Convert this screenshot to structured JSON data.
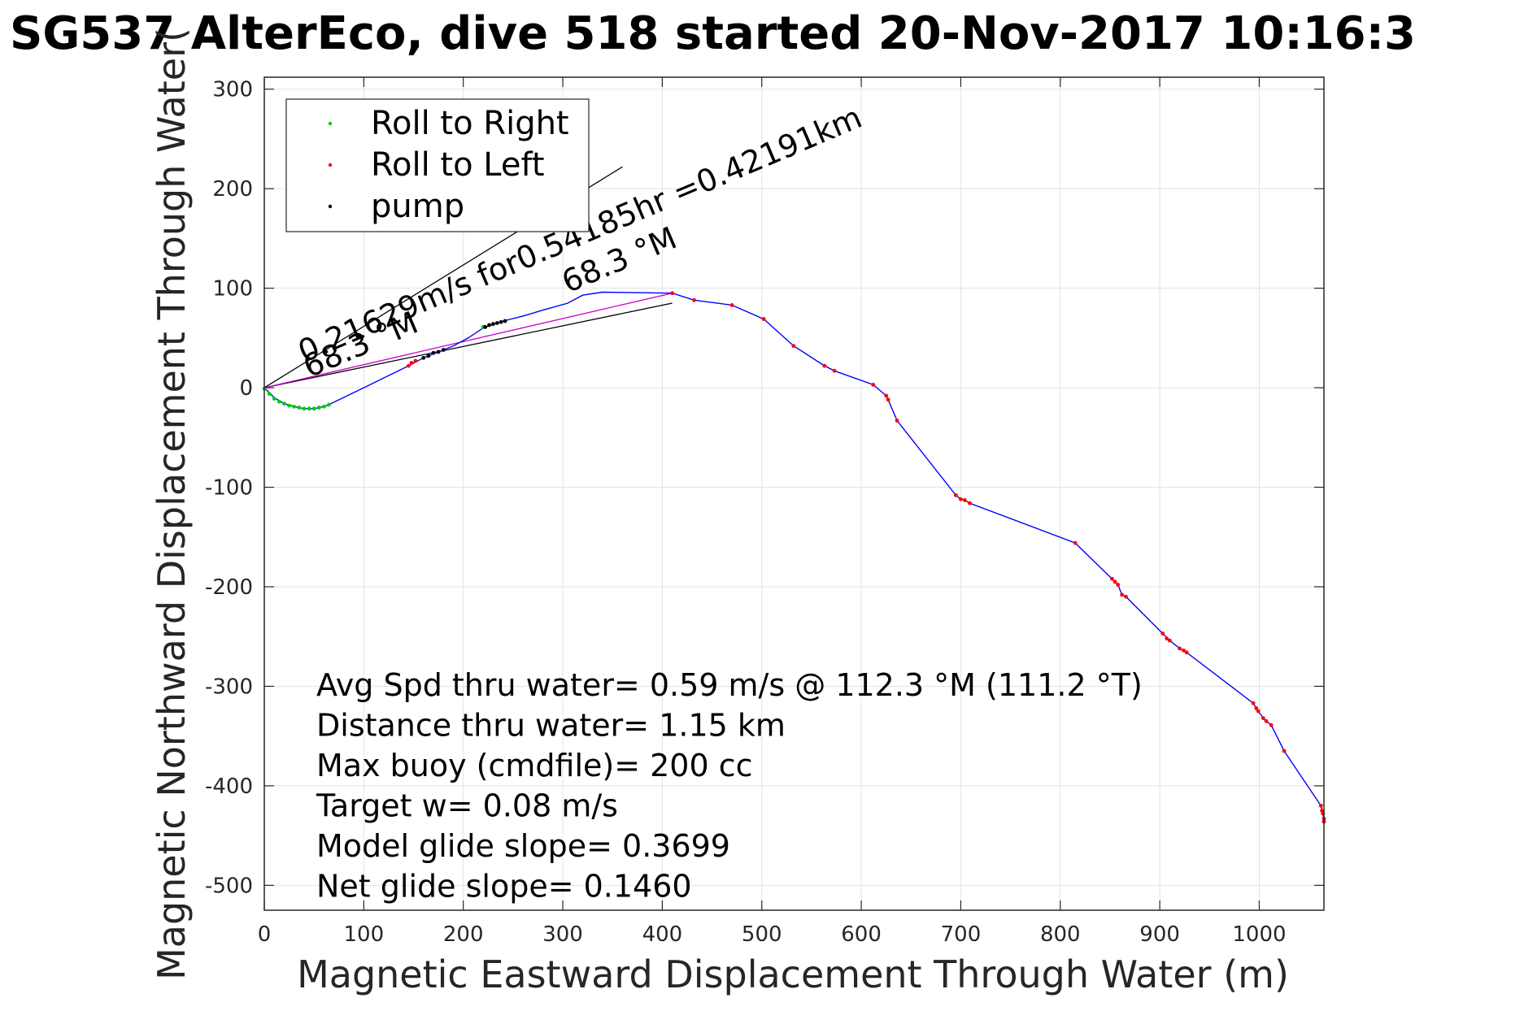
{
  "chart_data": {
    "type": "line",
    "title": "SG537 AlterEco, dive 518 started 20-Nov-2017 10:16:3",
    "xlabel": "Magnetic Eastward Displacement Through Water (m)",
    "ylabel": "Magnetic Northward Displacement Through Water(",
    "xlim": [
      0,
      1065
    ],
    "ylim": [
      -525,
      312
    ],
    "xticks": [
      0,
      100,
      200,
      300,
      400,
      500,
      600,
      700,
      800,
      900,
      1000
    ],
    "yticks": [
      300,
      200,
      100,
      0,
      -100,
      -200,
      -300,
      -400,
      -500
    ],
    "grid": true,
    "legend_position": "top-left",
    "legend": [
      {
        "label": "Roll to Right",
        "color": "#00cc00"
      },
      {
        "label": "Roll to Left",
        "color": "#ff0000"
      },
      {
        "label": "pump",
        "color": "#000000"
      }
    ],
    "track": {
      "color": "#0000ff",
      "points": [
        [
          0,
          0
        ],
        [
          5,
          -5
        ],
        [
          10,
          -10
        ],
        [
          20,
          -16
        ],
        [
          30,
          -19
        ],
        [
          40,
          -21
        ],
        [
          50,
          -21
        ],
        [
          60,
          -19
        ],
        [
          65,
          -17
        ],
        [
          100,
          0
        ],
        [
          145,
          22
        ],
        [
          160,
          30
        ],
        [
          175,
          36
        ],
        [
          190,
          42
        ],
        [
          205,
          50
        ],
        [
          220,
          60
        ],
        [
          240,
          67
        ],
        [
          260,
          72
        ],
        [
          280,
          78
        ],
        [
          305,
          85
        ],
        [
          320,
          93
        ],
        [
          340,
          96
        ],
        [
          410,
          95
        ],
        [
          432,
          88
        ],
        [
          470,
          83
        ],
        [
          502,
          69
        ],
        [
          532,
          42
        ],
        [
          563,
          22
        ],
        [
          573,
          17
        ],
        [
          612,
          3
        ],
        [
          625,
          -8
        ],
        [
          627,
          -12
        ],
        [
          636,
          -33
        ],
        [
          695,
          -108
        ],
        [
          700,
          -112
        ],
        [
          704,
          -113
        ],
        [
          709,
          -116
        ],
        [
          815,
          -156
        ],
        [
          852,
          -192
        ],
        [
          858,
          -198
        ],
        [
          862,
          -208
        ],
        [
          866,
          -210
        ],
        [
          903,
          -247
        ],
        [
          910,
          -254
        ],
        [
          920,
          -262
        ],
        [
          927,
          -266
        ],
        [
          994,
          -317
        ],
        [
          999,
          -325
        ],
        [
          1004,
          -332
        ],
        [
          1007,
          -335
        ],
        [
          1012,
          -339
        ],
        [
          1025,
          -365
        ],
        [
          1062,
          -420
        ],
        [
          1064,
          -428
        ],
        [
          1065,
          -436
        ]
      ]
    },
    "roll_right_points": [
      [
        0,
        -1
      ],
      [
        5,
        -6
      ],
      [
        10,
        -11
      ],
      [
        15,
        -14
      ],
      [
        20,
        -16
      ],
      [
        25,
        -18
      ],
      [
        30,
        -19
      ],
      [
        35,
        -20
      ],
      [
        40,
        -21
      ],
      [
        45,
        -21
      ],
      [
        50,
        -21
      ],
      [
        55,
        -20
      ],
      [
        60,
        -19
      ],
      [
        65,
        -17
      ],
      [
        220,
        61
      ]
    ],
    "roll_left_points": [
      [
        145,
        22
      ],
      [
        148,
        25
      ],
      [
        152,
        27
      ],
      [
        432,
        88
      ],
      [
        470,
        83
      ],
      [
        502,
        69
      ],
      [
        532,
        42
      ],
      [
        563,
        22
      ],
      [
        573,
        17
      ],
      [
        612,
        3
      ],
      [
        625,
        -8
      ],
      [
        627,
        -12
      ],
      [
        636,
        -33
      ],
      [
        695,
        -108
      ],
      [
        700,
        -112
      ],
      [
        704,
        -113
      ],
      [
        709,
        -116
      ],
      [
        815,
        -156
      ],
      [
        852,
        -192
      ],
      [
        855,
        -195
      ],
      [
        858,
        -198
      ],
      [
        862,
        -208
      ],
      [
        866,
        -210
      ],
      [
        903,
        -247
      ],
      [
        907,
        -252
      ],
      [
        910,
        -254
      ],
      [
        920,
        -262
      ],
      [
        924,
        -264
      ],
      [
        927,
        -266
      ],
      [
        994,
        -317
      ],
      [
        997,
        -322
      ],
      [
        999,
        -325
      ],
      [
        1004,
        -332
      ],
      [
        1007,
        -335
      ],
      [
        1012,
        -339
      ],
      [
        1025,
        -365
      ],
      [
        1062,
        -420
      ],
      [
        1063,
        -425
      ],
      [
        1064,
        -428
      ],
      [
        1065,
        -433
      ],
      [
        1065,
        -436
      ],
      [
        410,
        95
      ]
    ],
    "pump_points": [
      [
        160,
        30
      ],
      [
        165,
        32
      ],
      [
        170,
        35
      ],
      [
        175,
        36
      ],
      [
        180,
        38
      ],
      [
        222,
        61
      ],
      [
        226,
        63
      ],
      [
        230,
        64
      ],
      [
        234,
        65
      ],
      [
        238,
        66
      ],
      [
        242,
        67
      ]
    ],
    "rays": [
      {
        "from": [
          0,
          0
        ],
        "to": [
          360,
          222
        ],
        "color": "#000000"
      },
      {
        "from": [
          0,
          0
        ],
        "to": [
          410,
          85
        ],
        "color": "#000000"
      },
      {
        "from": [
          0,
          0
        ],
        "to": [
          410,
          95
        ],
        "color": "#cc00cc"
      }
    ],
    "ray_labels": [
      {
        "text": "0.21629m/s for0.54185hr =0.42191km",
        "at": [
          40,
          25
        ],
        "angle_deg": -23
      },
      {
        "text": "68.3 °M",
        "at": [
          45,
          10
        ],
        "angle_deg": -23
      },
      {
        "text": "68.3 °M",
        "at": [
          305,
          95
        ],
        "angle_deg": -23
      }
    ],
    "annotations": [
      "Avg Spd thru water=  0.59 m/s @ 112.3 °M (111.2 °T)",
      "Distance thru water=  1.15 km",
      "Max buoy (cmdfile)= 200 cc",
      "Target w= 0.08 m/s",
      "Model glide slope= 0.3699",
      "Net glide slope= 0.1460"
    ]
  }
}
